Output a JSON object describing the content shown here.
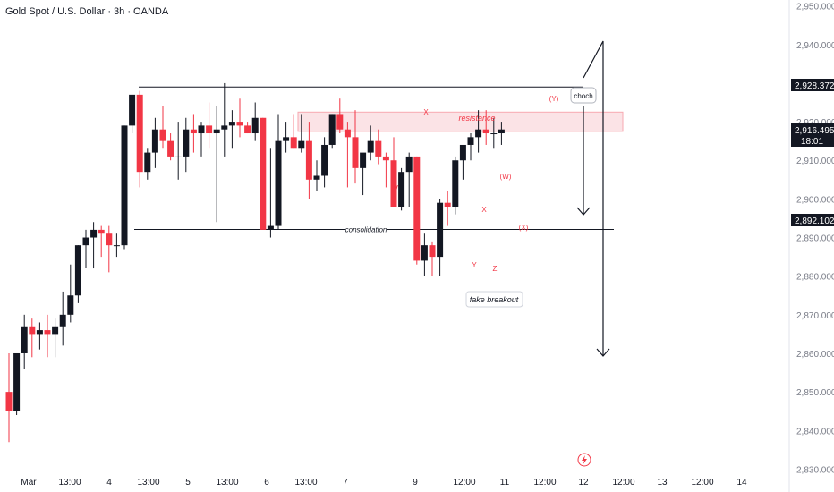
{
  "header": {
    "title": "Gold Spot / U.S. Dollar · 3h · OANDA"
  },
  "colors": {
    "up": "#131722",
    "down": "#f23645",
    "grid_text": "#787b86",
    "zone_fill": "#fbe3e6",
    "zone_border": "#f7a9b1",
    "annotation": "#f23645"
  },
  "chart_data": {
    "type": "candlestick",
    "ylim": [
      2825,
      2952
    ],
    "y_ticks": [
      2830,
      2840,
      2850,
      2860,
      2870,
      2880,
      2890,
      2900,
      2910,
      2920,
      2930,
      2940,
      2950
    ],
    "y_tick_labels": [
      "2,830.000",
      "2,840.000",
      "2,850.000",
      "2,860.000",
      "2,870.000",
      "2,880.000",
      "2,890.000",
      "2,900.000",
      "2,910.000",
      "2,920.000",
      "2,930.000",
      "2,940.000",
      "2,950.000"
    ],
    "x_labels": [
      "Mar",
      "13:00",
      "4",
      "13:00",
      "5",
      "13:00",
      "6",
      "13:00",
      "7",
      "9",
      "12:00",
      "11",
      "12:00",
      "12",
      "12:00",
      "13",
      "12:00",
      "14"
    ],
    "candles": [
      [
        2850,
        2860,
        2837,
        2845
      ],
      [
        2845,
        2859,
        2844,
        2860
      ],
      [
        2860,
        2870,
        2856,
        2867
      ],
      [
        2867,
        2869,
        2859,
        2865
      ],
      [
        2865,
        2868,
        2861,
        2866
      ],
      [
        2866,
        2870,
        2859,
        2865
      ],
      [
        2865,
        2869,
        2859,
        2867
      ],
      [
        2867,
        2876,
        2862,
        2870
      ],
      [
        2870,
        2883,
        2868,
        2875
      ],
      [
        2875,
        2888,
        2873,
        2888
      ],
      [
        2888,
        2892,
        2882,
        2890
      ],
      [
        2890,
        2894,
        2882,
        2892
      ],
      [
        2892,
        2893,
        2885,
        2891
      ],
      [
        2891,
        2893,
        2881,
        2888
      ],
      [
        2888,
        2891,
        2885,
        2888
      ],
      [
        2888,
        2919,
        2887,
        2919
      ],
      [
        2919,
        2927,
        2917,
        2927
      ],
      [
        2927,
        2928,
        2903,
        2907
      ],
      [
        2907,
        2913,
        2905,
        2912
      ],
      [
        2912,
        2921,
        2908,
        2918
      ],
      [
        2918,
        2924,
        2913,
        2915
      ],
      [
        2915,
        2917,
        2910,
        2911
      ],
      [
        2911,
        2920,
        2905,
        2911
      ],
      [
        2911,
        2921,
        2907,
        2918
      ],
      [
        2918,
        2922,
        2912,
        2917
      ],
      [
        2917,
        2920,
        2911,
        2919
      ],
      [
        2919,
        2925,
        2913,
        2917
      ],
      [
        2917,
        2924,
        2894,
        2918
      ],
      [
        2918,
        2930,
        2911,
        2919
      ],
      [
        2919,
        2923,
        2913,
        2920
      ],
      [
        2920,
        2926,
        2916,
        2919
      ],
      [
        2919,
        2920,
        2917,
        2917
      ],
      [
        2917,
        2925,
        2915,
        2921
      ],
      [
        2921,
        2921,
        2893,
        2892
      ],
      [
        2892,
        2913,
        2890,
        2893
      ],
      [
        2893,
        2922,
        2892,
        2915
      ],
      [
        2915,
        2920,
        2912,
        2916
      ],
      [
        2916,
        2922,
        2913,
        2913
      ],
      [
        2913,
        2922,
        2912,
        2915
      ],
      [
        2915,
        2920,
        2900,
        2905
      ],
      [
        2905,
        2910,
        2902,
        2906
      ],
      [
        2906,
        2916,
        2903,
        2914
      ],
      [
        2914,
        2922,
        2913,
        2922
      ],
      [
        2922,
        2926,
        2917,
        2918
      ],
      [
        2918,
        2920,
        2903,
        2916
      ],
      [
        2916,
        2923,
        2904,
        2908
      ],
      [
        2908,
        2911,
        2901,
        2912
      ],
      [
        2912,
        2919,
        2910,
        2915
      ],
      [
        2915,
        2918,
        2909,
        2911
      ],
      [
        2911,
        2912,
        2903,
        2910
      ],
      [
        2910,
        2916,
        2898,
        2898
      ],
      [
        2898,
        2908,
        2897,
        2907
      ],
      [
        2907,
        2912,
        2898,
        2911
      ],
      [
        2911,
        2911,
        2883,
        2884
      ],
      [
        2884,
        2891,
        2880,
        2888
      ],
      [
        2888,
        2889,
        2880,
        2885
      ],
      [
        2885,
        2900,
        2880,
        2899
      ],
      [
        2899,
        2902,
        2893,
        2898
      ],
      [
        2898,
        2911,
        2896,
        2910
      ],
      [
        2910,
        2913,
        2905,
        2914
      ],
      [
        2914,
        2917,
        2910,
        2916
      ],
      [
        2916,
        2923,
        2912,
        2918
      ],
      [
        2918,
        2923,
        2914,
        2917
      ],
      [
        2917,
        2921,
        2913,
        2917
      ],
      [
        2917,
        2920,
        2914,
        2918
      ]
    ],
    "lines": {
      "range_top": 2929,
      "consolidation": 2892.1,
      "resistance_top": 2922.5,
      "resistance_bottom": 2917.5
    },
    "annotations": {
      "consolidation": "consolidation",
      "resistance": "resistance",
      "fake_breakout": "fake breakout",
      "choch": "choch",
      "wave_x1": "X",
      "wave_w1": "W",
      "wave_x2": "X",
      "wave_y1": "Y",
      "wave_z": "Z",
      "wave_w2": "(W)",
      "wave_x3": "(X)",
      "wave_y2": "(Y)"
    },
    "price_labels": {
      "top": "2,928.372",
      "current": "2,916.495",
      "countdown": "18:01",
      "bottom": "2,892.102"
    }
  }
}
